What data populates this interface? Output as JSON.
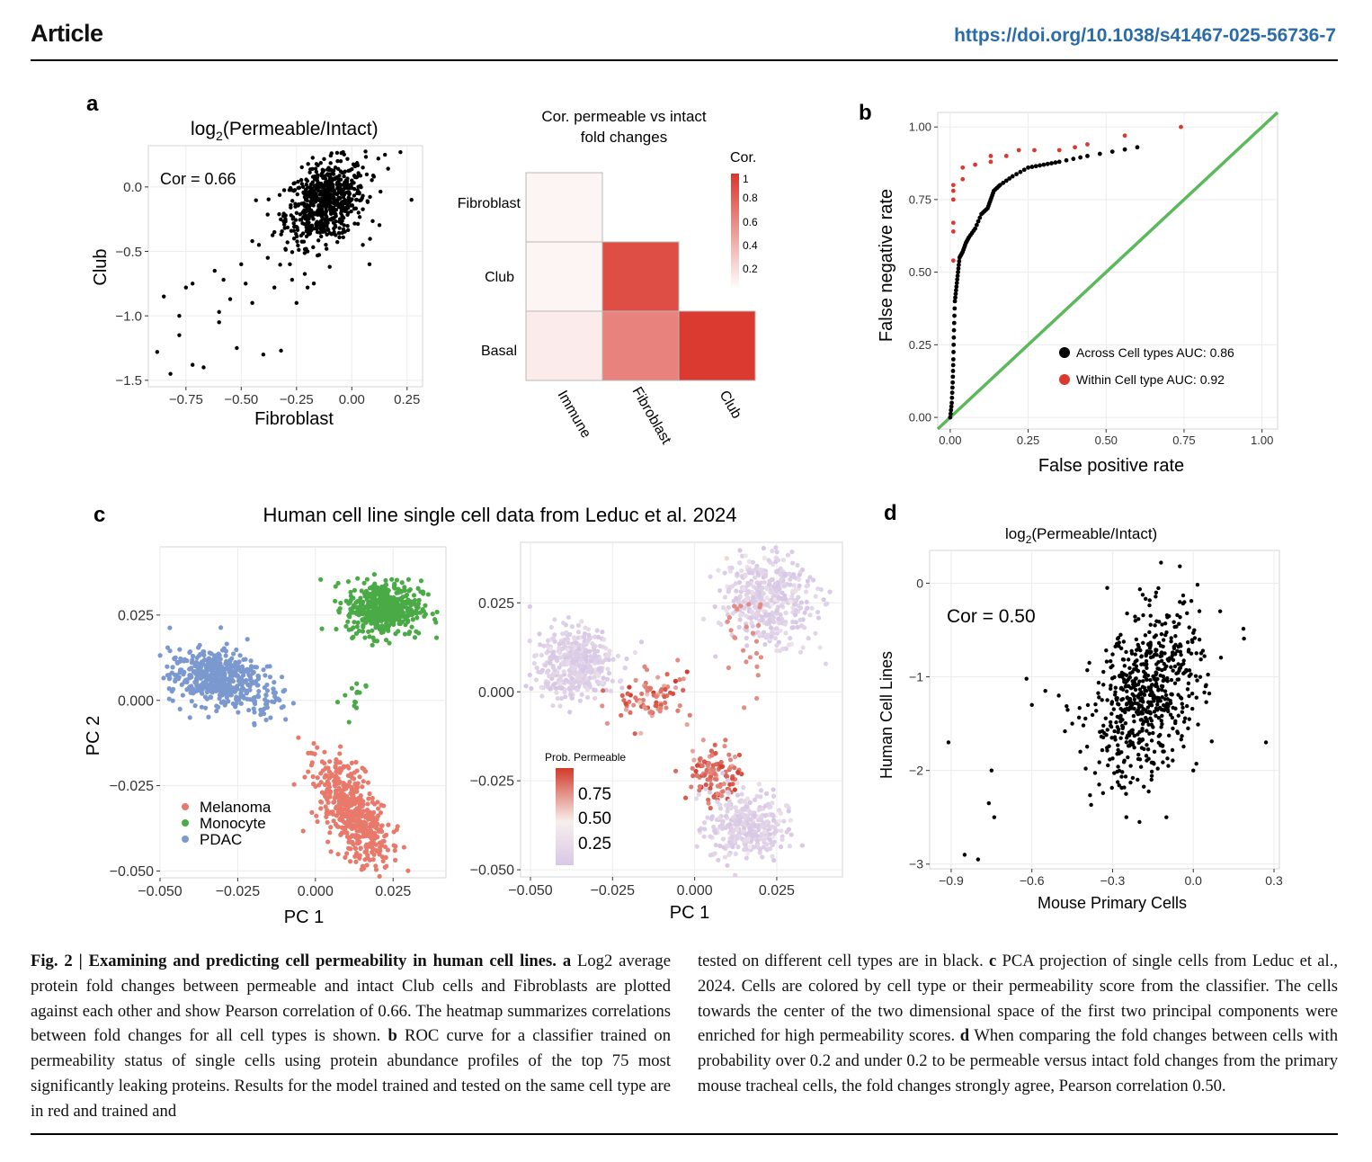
{
  "header": {
    "section": "Article",
    "doi": "https://doi.org/10.1038/s41467-025-56736-7"
  },
  "colors": {
    "doi": "#2b6ca8",
    "melanoma": "#e8796b",
    "monocyte": "#4aab46",
    "pdac": "#7b98cf",
    "roc_within": "#d83a32",
    "roc_diagonal": "#5cb85c",
    "heat_high": "#d9362c"
  },
  "figure": {
    "panel_a": {
      "letter": "a",
      "scatter": {
        "title_prefix": "log",
        "title_sub": "2",
        "title_suffix": "(Permeable/Intact)",
        "annotation": "Cor = 0.66",
        "xlabel": "Fibroblast",
        "ylabel": "Club",
        "xticks": [
          "−0.75",
          "−0.50",
          "−0.25",
          "0.00",
          "0.25"
        ],
        "yticks": [
          "0.0",
          "−0.5",
          "−1.0",
          "−1.5"
        ]
      },
      "heatmap": {
        "title_line1": "Cor. permeable vs intact",
        "title_line2": "fold changes",
        "rows": [
          "Fibroblast",
          "Club",
          "Basal"
        ],
        "cols": [
          "Immune",
          "Fibroblast",
          "Club"
        ],
        "legend_title": "Cor.",
        "legend_ticks": [
          "1",
          "0.8",
          "0.6",
          "0.4",
          "0.2"
        ]
      }
    },
    "panel_b": {
      "letter": "b",
      "xlabel": "False positive rate",
      "ylabel": "False negative rate",
      "xticks": [
        "0.00",
        "0.25",
        "0.50",
        "0.75",
        "1.00"
      ],
      "yticks": [
        "1.00",
        "0.75",
        "0.50",
        "0.25",
        "0.00"
      ],
      "legend": [
        "Across Cell types AUC: 0.86",
        "Within Cell type AUC: 0.92"
      ]
    },
    "panel_c": {
      "letter": "c",
      "title": "Human cell line single cell data from Leduc et al. 2024",
      "xlabel": "PC 1",
      "ylabel": "PC 2",
      "left_xticks": [
        "−0.050",
        "−0.025",
        "0.000",
        "0.025"
      ],
      "left_yticks": [
        "0.025",
        "0.000",
        "−0.025",
        "−0.050"
      ],
      "right_xticks": [
        "−0.050",
        "−0.025",
        "0.000",
        "0.025"
      ],
      "right_yticks": [
        "0.025",
        "0.000",
        "−0.025",
        "−0.050"
      ],
      "legend": [
        "Melanoma",
        "Monocyte",
        "PDAC"
      ],
      "prob_legend_title": "Prob. Permeable",
      "prob_legend_ticks": [
        "0.75",
        "0.50",
        "0.25"
      ]
    },
    "panel_d": {
      "letter": "d",
      "title_prefix": "log",
      "title_sub": "2",
      "title_suffix": "(Permeable/Intact)",
      "annotation": "Cor = 0.50",
      "xlabel": "Mouse Primary Cells",
      "ylabel": "Human Cell Lines",
      "xticks": [
        "−0.9",
        "−0.6",
        "−0.3",
        "0.0",
        "0.3"
      ],
      "yticks": [
        "0",
        "−1",
        "−2",
        "−3"
      ]
    }
  },
  "chart_data": [
    {
      "type": "scatter",
      "panel": "a-left",
      "title": "log2(Permeable/Intact)",
      "xlabel": "Fibroblast",
      "ylabel": "Club",
      "xlim": [
        -0.92,
        0.32
      ],
      "ylim": [
        -1.55,
        0.32
      ],
      "correlation": 0.66,
      "points": [
        [
          -0.85,
          -0.85
        ],
        [
          -0.82,
          -1.45
        ],
        [
          -0.78,
          -1.0
        ],
        [
          -0.78,
          -1.15
        ],
        [
          -0.72,
          -0.75
        ],
        [
          -0.72,
          -1.38
        ],
        [
          -0.67,
          -1.4
        ],
        [
          -0.88,
          -1.28
        ],
        [
          -0.75,
          -0.78
        ],
        [
          -0.6,
          -1.05
        ],
        [
          -0.6,
          -0.97
        ],
        [
          -0.55,
          -0.87
        ],
        [
          -0.52,
          -1.25
        ],
        [
          -0.5,
          -0.6
        ],
        [
          -0.48,
          -0.75
        ],
        [
          -0.45,
          -0.9
        ],
        [
          -0.42,
          -0.45
        ],
        [
          -0.4,
          -1.3
        ],
        [
          -0.38,
          -0.55
        ],
        [
          -0.35,
          -0.78
        ],
        [
          -0.32,
          -1.27
        ],
        [
          -0.3,
          -0.25
        ],
        [
          -0.28,
          -0.6
        ],
        [
          -0.25,
          -0.9
        ],
        [
          -0.22,
          0.0
        ],
        [
          -0.2,
          -0.5
        ],
        [
          -0.18,
          -0.3
        ],
        [
          -0.15,
          -0.15
        ],
        [
          -0.12,
          -0.2
        ],
        [
          -0.1,
          0.1
        ],
        [
          -0.08,
          -0.35
        ],
        [
          -0.05,
          0.2
        ],
        [
          0.0,
          0.05
        ],
        [
          0.02,
          -0.1
        ],
        [
          0.05,
          0.15
        ],
        [
          0.08,
          -0.6
        ],
        [
          0.1,
          0.08
        ],
        [
          0.15,
          0.25
        ],
        [
          0.22,
          0.27
        ],
        [
          0.27,
          -0.1
        ],
        [
          -0.62,
          -0.65
        ],
        [
          -0.58,
          -0.72
        ],
        [
          -0.45,
          -0.42
        ],
        [
          -0.35,
          -0.35
        ],
        [
          -0.3,
          -0.48
        ],
        [
          -0.27,
          -0.72
        ],
        [
          -0.2,
          -0.78
        ],
        [
          -0.1,
          -0.62
        ],
        [
          0.12,
          0.22
        ],
        [
          0.05,
          -0.45
        ]
      ]
    },
    {
      "type": "heatmap",
      "panel": "a-right",
      "title": "Cor. permeable vs intact fold changes",
      "rows": [
        "Fibroblast",
        "Club",
        "Basal"
      ],
      "cols": [
        "Immune",
        "Fibroblast",
        "Club"
      ],
      "values": [
        [
          0.05,
          null,
          null
        ],
        [
          0.05,
          0.88,
          null
        ],
        [
          0.1,
          0.62,
          0.98
        ]
      ],
      "legend_range": [
        0,
        1
      ]
    },
    {
      "type": "line",
      "panel": "b",
      "title": "ROC",
      "xlabel": "False positive rate",
      "ylabel": "False negative rate",
      "xlim": [
        0,
        1
      ],
      "ylim": [
        0,
        1
      ],
      "series": [
        {
          "name": "Across Cell types AUC: 0.86",
          "x": [
            0.0,
            0.005,
            0.008,
            0.01,
            0.012,
            0.015,
            0.02,
            0.025,
            0.03,
            0.04,
            0.05,
            0.06,
            0.08,
            0.1,
            0.12,
            0.13,
            0.14,
            0.16,
            0.2,
            0.25,
            0.3,
            0.35,
            0.44,
            0.6
          ],
          "y": [
            0.0,
            0.05,
            0.12,
            0.2,
            0.3,
            0.4,
            0.45,
            0.5,
            0.55,
            0.57,
            0.6,
            0.62,
            0.65,
            0.7,
            0.72,
            0.75,
            0.78,
            0.8,
            0.83,
            0.86,
            0.87,
            0.88,
            0.9,
            0.93
          ]
        },
        {
          "name": "Within Cell type AUC: 0.92",
          "x": [
            0.01,
            0.01,
            0.01,
            0.01,
            0.01,
            0.01,
            0.04,
            0.04,
            0.08,
            0.13,
            0.13,
            0.18,
            0.22,
            0.27,
            0.35,
            0.4,
            0.44,
            0.56,
            0.74
          ],
          "y": [
            0.54,
            0.64,
            0.67,
            0.75,
            0.78,
            0.8,
            0.82,
            0.86,
            0.87,
            0.88,
            0.9,
            0.9,
            0.92,
            0.92,
            0.92,
            0.93,
            0.94,
            0.97,
            1.0
          ]
        },
        {
          "name": "diagonal",
          "x": [
            0,
            1
          ],
          "y": [
            0,
            1
          ]
        }
      ]
    },
    {
      "type": "scatter",
      "panel": "c-left",
      "title": "Human cell line single cell data from Leduc et al. 2024",
      "xlabel": "PC 1",
      "ylabel": "PC 2",
      "xlim": [
        -0.05,
        0.042
      ],
      "ylim": [
        -0.052,
        0.045
      ],
      "clusters": [
        {
          "name": "Melanoma",
          "center": [
            0.012,
            -0.033
          ],
          "spread": [
            0.006,
            0.006
          ]
        },
        {
          "name": "Monocyte",
          "center": [
            0.022,
            0.027
          ],
          "spread": [
            0.006,
            0.004
          ]
        },
        {
          "name": "PDAC",
          "center": [
            -0.033,
            0.007
          ],
          "spread": [
            0.007,
            0.004
          ]
        }
      ]
    },
    {
      "type": "scatter",
      "panel": "c-right",
      "xlabel": "PC 1",
      "ylabel": "PC 2",
      "xlim": [
        -0.053,
        0.045
      ],
      "ylim": [
        -0.052,
        0.042
      ],
      "legend_title": "Prob. Permeable",
      "legend_range": [
        0.1,
        0.85
      ]
    },
    {
      "type": "scatter",
      "panel": "d",
      "title": "log2(Permeable/Intact)",
      "xlabel": "Mouse Primary Cells",
      "ylabel": "Human Cell Lines",
      "xlim": [
        -0.98,
        0.32
      ],
      "ylim": [
        -3.05,
        0.35
      ],
      "correlation": 0.5,
      "points": [
        [
          -0.91,
          -1.7
        ],
        [
          -0.85,
          -2.9
        ],
        [
          -0.8,
          -2.95
        ],
        [
          -0.75,
          -2.0
        ],
        [
          -0.76,
          -2.35
        ],
        [
          -0.74,
          -2.5
        ],
        [
          -0.62,
          -1.02
        ],
        [
          -0.55,
          -1.15
        ],
        [
          -0.5,
          -1.2
        ],
        [
          -0.45,
          -1.5
        ],
        [
          -0.4,
          -1.98
        ],
        [
          -0.35,
          -2.15
        ],
        [
          -0.32,
          -0.05
        ],
        [
          -0.25,
          -2.25
        ],
        [
          -0.2,
          -2.55
        ],
        [
          -0.15,
          -1.6
        ],
        [
          -0.12,
          0.22
        ],
        [
          -0.05,
          0.18
        ],
        [
          0.0,
          -2.0
        ],
        [
          0.1,
          -0.3
        ],
        [
          0.27,
          -1.7
        ],
        [
          -0.1,
          -2.5
        ],
        [
          -0.05,
          -0.2
        ],
        [
          -0.6,
          -1.3
        ],
        [
          -0.42,
          -1.8
        ]
      ]
    }
  ],
  "caption": {
    "fig_label": "Fig. 2 |",
    "fig_title": "Examining and predicting cell permeability in human cell lines.",
    "a_letter": "a",
    "a_text": "Log2 average protein fold changes between permeable and intact Club cells and Fibroblasts are plotted against each other and show Pearson correlation of 0.66. The heatmap summarizes correlations between fold changes for all cell types is shown.",
    "b_letter": "b",
    "b_text": "ROC curve for a classifier trained on permeability status of single cells using protein abundance profiles of the top 75 most significantly leaking proteins. Results for the model trained and tested on the same cell type are in red and trained and",
    "right_text": "tested on different cell types are in black.",
    "c_letter": "c",
    "c_text": "PCA projection of single cells from Leduc et al., 2024. Cells are colored by cell type or their permeability score from the classifier. The cells towards the center of the two dimensional space of the first two principal components were enriched for high permeability scores.",
    "d_letter": "d",
    "d_text": "When comparing the fold changes between cells with probability over 0.2 and under 0.2 to be permeable versus intact fold changes from the primary mouse tracheal cells, the fold changes strongly agree, Pearson correlation 0.50."
  }
}
